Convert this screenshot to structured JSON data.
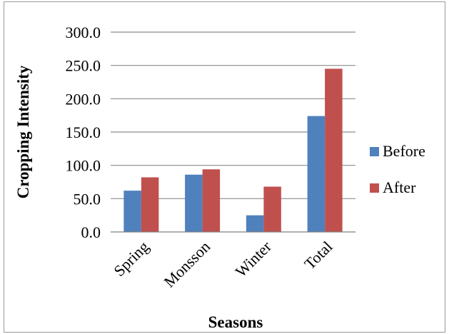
{
  "chart_data": {
    "type": "bar",
    "title": "",
    "xlabel": "Seasons",
    "ylabel": "Cropping Intensity",
    "categories": [
      "Spring",
      "Monsson",
      "Winter",
      "Total"
    ],
    "series": [
      {
        "name": "Before",
        "color": "#4f81bd",
        "values": [
          62,
          86,
          25,
          174
        ]
      },
      {
        "name": "After",
        "color": "#c0504d",
        "values": [
          82,
          94,
          68,
          245
        ]
      }
    ],
    "ylim": [
      0,
      300
    ],
    "yticks": [
      "0.0",
      "50.0",
      "100.0",
      "150.0",
      "200.0",
      "250.0",
      "300.0"
    ],
    "grid": "horizontal",
    "legend": "right"
  }
}
